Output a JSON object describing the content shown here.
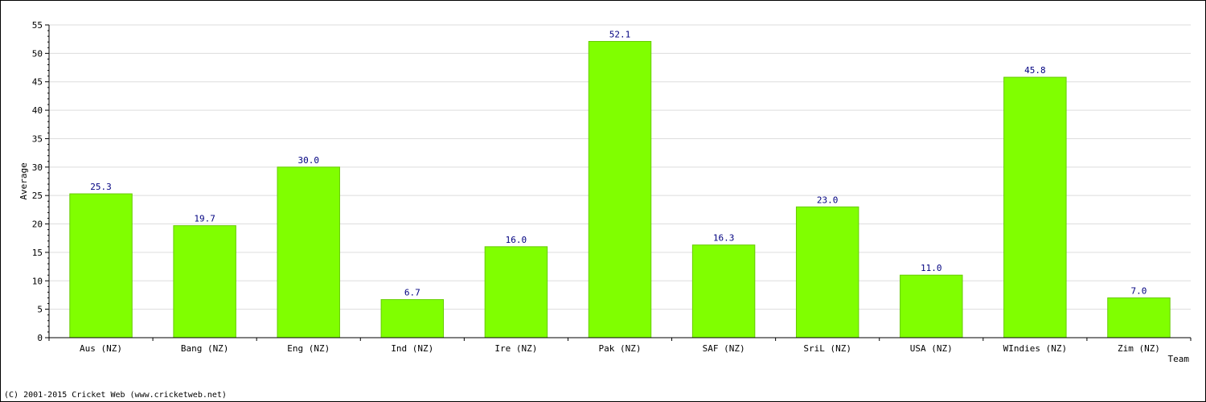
{
  "chart_data": {
    "type": "bar",
    "xlabel": "Team",
    "ylabel": "Average",
    "ylim": [
      0,
      55
    ],
    "yticks": [
      0,
      5,
      10,
      15,
      20,
      25,
      30,
      35,
      40,
      45,
      50,
      55
    ],
    "grid": true,
    "categories": [
      "Aus (NZ)",
      "Bang (NZ)",
      "Eng (NZ)",
      "Ind (NZ)",
      "Ire (NZ)",
      "Pak (NZ)",
      "SAF (NZ)",
      "SriL (NZ)",
      "USA (NZ)",
      "WIndies (NZ)",
      "Zim (NZ)"
    ],
    "values": [
      25.3,
      19.7,
      30.0,
      6.7,
      16.0,
      52.1,
      16.3,
      23.0,
      11.0,
      45.8,
      7.0
    ],
    "value_labels": [
      "25.3",
      "19.7",
      "30.0",
      "6.7",
      "16.0",
      "52.1",
      "16.3",
      "23.0",
      "11.0",
      "45.8",
      "7.0"
    ],
    "colors": {
      "bar": "#80ff00",
      "bar_stroke": "#66cc00",
      "value_label": "#000080",
      "grid": "#dddddd",
      "axis": "#000000"
    }
  },
  "footer": {
    "copyright": "(C) 2001-2015 Cricket Web (www.cricketweb.net)"
  }
}
